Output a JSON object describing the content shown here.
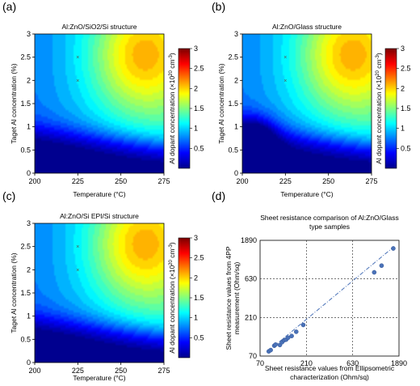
{
  "panel_labels": [
    "(a)",
    "(b)",
    "(c)",
    "(d)"
  ],
  "colorbar": {
    "label": "Al dopant concentration (×10",
    "label_sup": "20",
    "label_unit": " cm",
    "label_unit_sup": "-3",
    "label_close": ")",
    "ticks": [
      "0.5",
      "1",
      "1.5",
      "2",
      "2.5",
      "3"
    ],
    "colors": [
      "#00008f",
      "#0000ff",
      "#0080ff",
      "#00ffff",
      "#80ff80",
      "#ffff00",
      "#ff8000",
      "#ff0000",
      "#800000"
    ]
  },
  "chart_data": [
    {
      "type": "heatmap",
      "title": "Al:ZnO/SiO2/Si structure",
      "xlabel": "Temperature (°C)",
      "ylabel": "Taget Al concentration (%)",
      "x_ticks": [
        "200",
        "225",
        "250",
        "275"
      ],
      "y_ticks": [
        "0",
        "0.5",
        "1",
        "1.5",
        "2",
        "2.5",
        "3"
      ],
      "xlim": [
        200,
        275
      ],
      "ylim": [
        0,
        3
      ],
      "zlim": [
        0,
        3
      ],
      "markers": [
        {
          "x": 225,
          "y": 2.5
        },
        {
          "x": 225,
          "y": 2
        }
      ],
      "model": {
        "peak_x": 262,
        "peak_y": 2.55,
        "peak_value": 3.0,
        "low_edge_y": 0.35,
        "dip": 0
      }
    },
    {
      "type": "heatmap",
      "title": "Al:ZnO/Glass structure",
      "xlabel": "Temperature (°C)",
      "ylabel": "Taget Al concentration (%)",
      "x_ticks": [
        "200",
        "225",
        "250",
        "275"
      ],
      "y_ticks": [
        "0",
        "0.5",
        "1",
        "1.5",
        "2",
        "2.5",
        "3"
      ],
      "xlim": [
        200,
        275
      ],
      "ylim": [
        0,
        3
      ],
      "zlim": [
        0,
        3
      ],
      "markers": [
        {
          "x": 225,
          "y": 2.5
        },
        {
          "x": 225,
          "y": 2
        }
      ],
      "model": {
        "peak_x": 262,
        "peak_y": 2.55,
        "peak_value": 3.0,
        "low_edge_y": 0.35,
        "dip": 1
      }
    },
    {
      "type": "heatmap",
      "title": "Al:ZnO/Si EPI/Si structure",
      "xlabel": "Temperature (°C)",
      "ylabel": "Taget Al concentration (%)",
      "x_ticks": [
        "200",
        "225",
        "250",
        "275"
      ],
      "y_ticks": [
        "0",
        "0.5",
        "1",
        "1.5",
        "2",
        "2.5",
        "3"
      ],
      "xlim": [
        200,
        275
      ],
      "ylim": [
        0,
        3
      ],
      "zlim": [
        0,
        3
      ],
      "markers": [
        {
          "x": 225,
          "y": 2.5
        },
        {
          "x": 225,
          "y": 2
        }
      ],
      "model": {
        "peak_x": 262,
        "peak_y": 2.55,
        "peak_value": 3.0,
        "low_edge_y": 0.35,
        "dip": 0
      }
    },
    {
      "type": "scatter",
      "title_line1": "Sheet resistance comparison of Al:ZnO/Glass",
      "title_line2": "type samples",
      "xlabel_line1": "Sheet resistance values from Ellipsometric",
      "xlabel_line2": "characterization (Ohm/sq)",
      "ylabel_line1": "Sheet resistance values from 4PP",
      "ylabel_line2": "measurement (Ohm/sq)",
      "x_ticks": [
        70,
        210,
        630,
        1890
      ],
      "y_ticks": [
        70,
        210,
        630,
        1890
      ],
      "xlim": [
        70,
        1890
      ],
      "ylim": [
        70,
        1890
      ],
      "scale": "log",
      "grid": true,
      "marker_color": "#4a72b8",
      "points": [
        {
          "x": 86,
          "y": 80
        },
        {
          "x": 90,
          "y": 83
        },
        {
          "x": 98,
          "y": 94
        },
        {
          "x": 101,
          "y": 97
        },
        {
          "x": 112,
          "y": 96
        },
        {
          "x": 118,
          "y": 104
        },
        {
          "x": 124,
          "y": 110
        },
        {
          "x": 130,
          "y": 112
        },
        {
          "x": 136,
          "y": 118
        },
        {
          "x": 148,
          "y": 124
        },
        {
          "x": 165,
          "y": 140
        },
        {
          "x": 195,
          "y": 170
        },
        {
          "x": 1050,
          "y": 760
        },
        {
          "x": 1250,
          "y": 920
        },
        {
          "x": 1650,
          "y": 1500
        }
      ],
      "fit_line": {
        "x": [
          82,
          1720
        ],
        "y": [
          78,
          1620
        ]
      }
    }
  ]
}
